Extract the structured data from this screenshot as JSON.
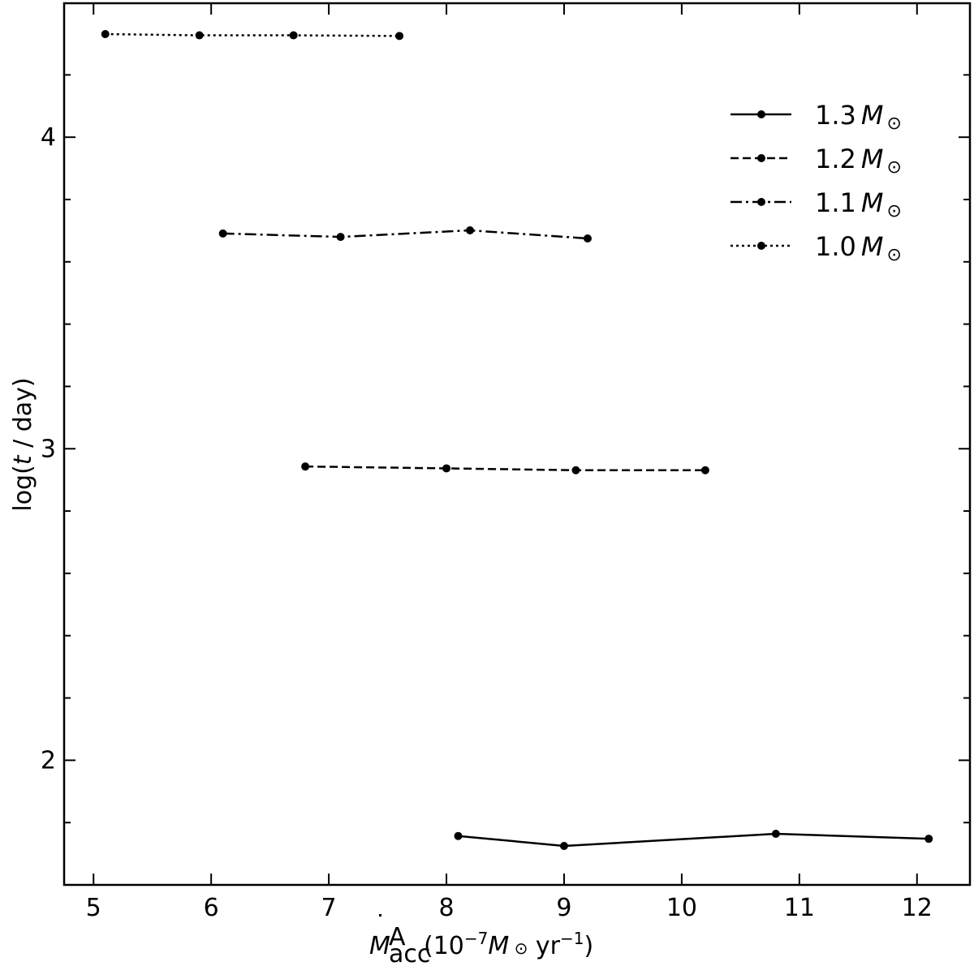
{
  "chart_data": {
    "type": "line",
    "xlabel": "",
    "ylabel": "",
    "xlim": [
      4.75,
      12.45
    ],
    "ylim": [
      1.6,
      4.43
    ],
    "x_ticks": [
      5,
      6,
      7,
      8,
      9,
      10,
      11,
      12
    ],
    "x_tick_labels": [
      "5",
      "6",
      "7",
      "8",
      "9",
      "10",
      "11",
      "12"
    ],
    "y_major_ticks": [
      2,
      3,
      4
    ],
    "y_tick_labels": [
      "2",
      "3",
      "4"
    ],
    "y_minor_ticks": [
      1.8,
      2.2,
      2.4,
      2.6,
      2.8,
      3.2,
      3.4,
      3.6,
      3.8,
      4.2
    ],
    "legend_position": "top-right",
    "grid": false,
    "series": [
      {
        "name": "1.3",
        "linestyle": "solid",
        "x": [
          8.1,
          9.0,
          10.8,
          12.1
        ],
        "y": [
          1.757,
          1.725,
          1.764,
          1.748
        ]
      },
      {
        "name": "1.2",
        "linestyle": "dashed",
        "x": [
          6.8,
          8.0,
          9.1,
          10.2
        ],
        "y": [
          2.943,
          2.937,
          2.931,
          2.931
        ]
      },
      {
        "name": "1.1",
        "linestyle": "dashdot",
        "x": [
          6.1,
          7.1,
          8.2,
          9.2
        ],
        "y": [
          3.691,
          3.68,
          3.701,
          3.675
        ]
      },
      {
        "name": "1.0",
        "linestyle": "dotted",
        "x": [
          5.1,
          5.9,
          6.7,
          7.6
        ],
        "y": [
          4.331,
          4.327,
          4.327,
          4.325
        ]
      }
    ]
  }
}
